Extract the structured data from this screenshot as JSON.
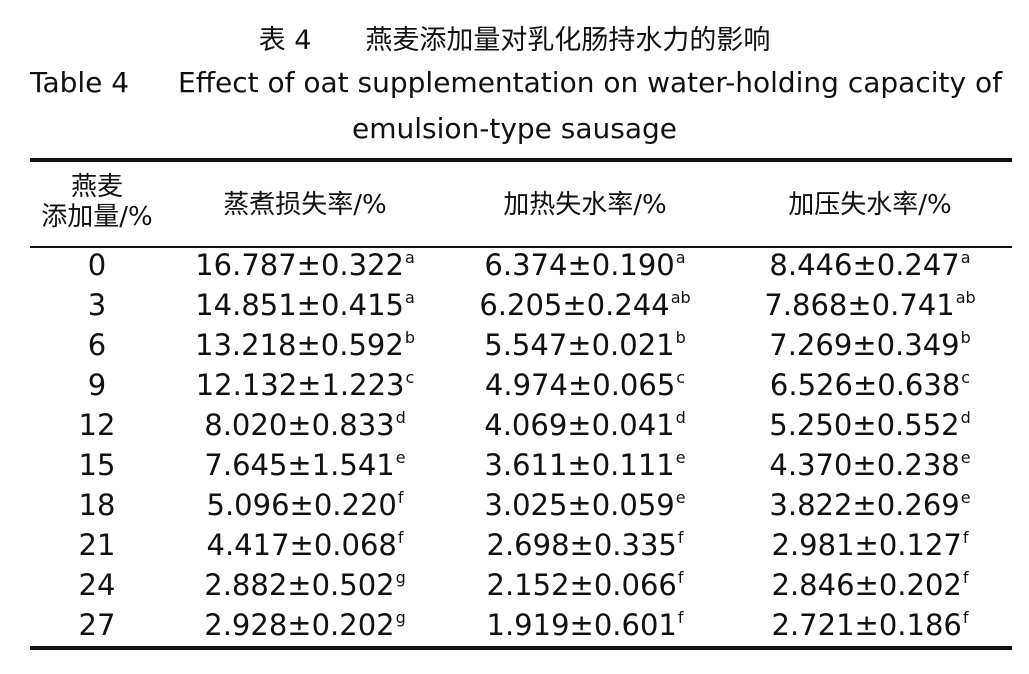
{
  "caption": {
    "title_zh": "表 4　　燕麦添加量对乳化肠持水力的影响",
    "label": "Table 4",
    "title_en": [
      "Effect of oat supplementation on water-holding capacity of",
      "emulsion-type sausage"
    ]
  },
  "table": {
    "header": [
      [
        "燕麦",
        "添加量/%"
      ],
      "蒸煮损失率/%",
      "加热失水率/%",
      "加压失水率/%"
    ],
    "rows": [
      [
        "0",
        {
          "text": "16.787±0.322",
          "sup": "a"
        },
        {
          "text": "6.374±0.190",
          "sup": "a"
        },
        {
          "text": "8.446±0.247",
          "sup": "a"
        }
      ],
      [
        "3",
        {
          "text": "14.851±0.415",
          "sup": "a"
        },
        {
          "text": "6.205±0.244",
          "sup": "ab"
        },
        {
          "text": "7.868±0.741",
          "sup": "ab"
        }
      ],
      [
        "6",
        {
          "text": "13.218±0.592",
          "sup": "b"
        },
        {
          "text": "5.547±0.021",
          "sup": "b"
        },
        {
          "text": "7.269±0.349",
          "sup": "b"
        }
      ],
      [
        "9",
        {
          "text": "12.132±1.223",
          "sup": "c"
        },
        {
          "text": "4.974±0.065",
          "sup": "c"
        },
        {
          "text": "6.526±0.638",
          "sup": "c"
        }
      ],
      [
        "12",
        {
          "text": "8.020±0.833",
          "sup": "d"
        },
        {
          "text": "4.069±0.041",
          "sup": "d"
        },
        {
          "text": "5.250±0.552",
          "sup": "d"
        }
      ],
      [
        "15",
        {
          "text": "7.645±1.541",
          "sup": "e"
        },
        {
          "text": "3.611±0.111",
          "sup": "e"
        },
        {
          "text": "4.370±0.238",
          "sup": "e"
        }
      ],
      [
        "18",
        {
          "text": "5.096±0.220",
          "sup": "f"
        },
        {
          "text": "3.025±0.059",
          "sup": "e"
        },
        {
          "text": "3.822±0.269",
          "sup": "e"
        }
      ],
      [
        "21",
        {
          "text": "4.417±0.068",
          "sup": "f"
        },
        {
          "text": "2.698±0.335",
          "sup": "f"
        },
        {
          "text": "2.981±0.127",
          "sup": "f"
        }
      ],
      [
        "24",
        {
          "text": "2.882±0.502",
          "sup": "g"
        },
        {
          "text": "2.152±0.066",
          "sup": "f"
        },
        {
          "text": "2.846±0.202",
          "sup": "f"
        }
      ],
      [
        "27",
        {
          "text": "2.928±0.202",
          "sup": "g"
        },
        {
          "text": "1.919±0.601",
          "sup": "f"
        },
        {
          "text": "2.721±0.186",
          "sup": "f"
        }
      ]
    ]
  }
}
